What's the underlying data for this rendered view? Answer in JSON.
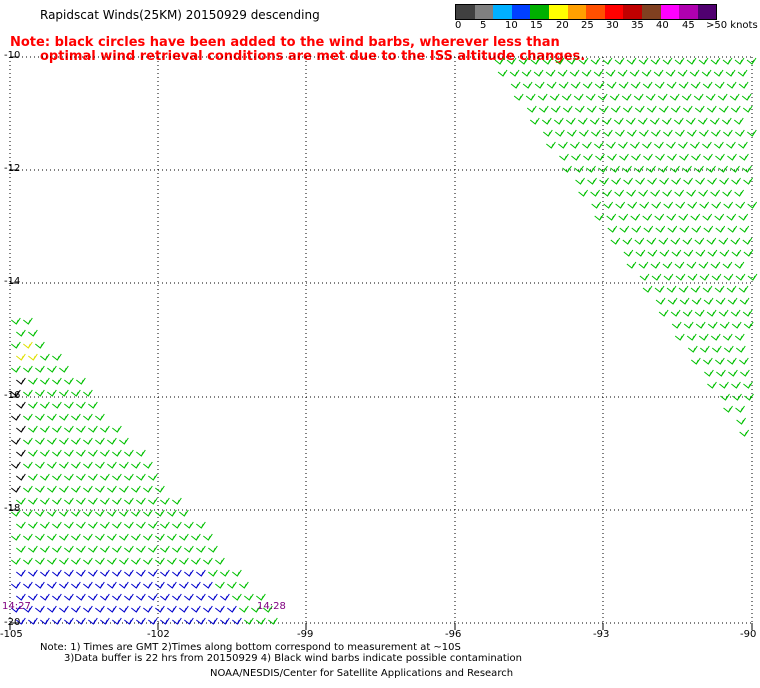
{
  "title": "Rapidscat Winds(25KM) 20150929 descending",
  "note_lines": [
    "Note: black circles have been added to the wind barbs, wherever less than",
    "optimal wind retrieval conditions are met due to the ISS altitude changes."
  ],
  "legend": {
    "labels": [
      "0",
      "5",
      "10",
      "15",
      "20",
      "25",
      "30",
      "35",
      "40",
      "45",
      ">50 knots"
    ],
    "colors": [
      "#404040",
      "#808080",
      "#00b0ff",
      "#0040ff",
      "#00b000",
      "#ffff00",
      "#ffa000",
      "#ff5000",
      "#ff0000",
      "#c00000",
      "#804020",
      "#ff00ff",
      "#b000b0",
      "#500070"
    ]
  },
  "axes": {
    "lat_labels": [
      "-10",
      "-12",
      "-14",
      "-16",
      "-18",
      "-20"
    ],
    "lon_labels": [
      "-105",
      "-102",
      "-99",
      "-96",
      "-93",
      "-90"
    ]
  },
  "times": [
    "14:27",
    "14:28"
  ],
  "footer": {
    "note1": "Note: 1) Times are GMT 2)Times along bottom correspond to measurement at ~10S",
    "note2": "3)Data buffer is 22 hrs from 20150929 4) Black wind barbs indicate possible contamination",
    "credit": "NOAA/NESDIS/Center for Satellite Applications and Research"
  },
  "barb_colors": {
    "green": "#00c000",
    "blue": "#0000cc",
    "yellow": "#e0e000",
    "black": "#000000"
  }
}
